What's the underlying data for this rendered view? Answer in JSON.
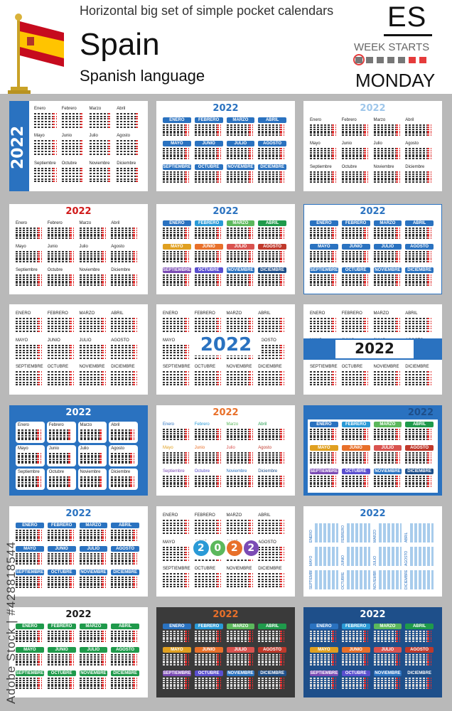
{
  "header": {
    "top_text": "Horizontal big set of simple pocket calendars",
    "country": "Spain",
    "language": "Spanish language",
    "code": "ES",
    "week_starts": "WEEK STARTS",
    "weekday": "MONDAY"
  },
  "watermark": "Adobe Stock | #428818544",
  "colors": {
    "flag_red": "#c60b1e",
    "flag_yellow": "#ffc400",
    "blue": "#2a72c0",
    "dark_blue": "#1e4f8a",
    "grey_bg": "#b9b9b9",
    "dark_card": "#3a3a3a"
  },
  "months_upper": [
    "ENERO",
    "FEBRERO",
    "MARZO",
    "ABRIL",
    "MAYO",
    "JUNIO",
    "JULIO",
    "AGOSTO",
    "SEPTIEMBRE",
    "OCTUBRE",
    "NOVIEMBRE",
    "DICIEMBRE"
  ],
  "months_title": [
    "Enero",
    "Febrero",
    "Marzo",
    "Abril",
    "Mayo",
    "Junio",
    "Julio",
    "Agosto",
    "Septiembre",
    "Octubre",
    "Noviembre",
    "Diciembre"
  ],
  "year": "2022",
  "circle_year": [
    "2",
    "0",
    "2",
    "2"
  ],
  "cards": [
    {
      "style": "title",
      "year_pos": "side-band"
    },
    {
      "style": "upper",
      "year_pos": "top",
      "year_color": "#2a72c0",
      "head": "#2a72c0"
    },
    {
      "style": "title",
      "year_pos": "top",
      "year_color": "#9ec6ea"
    },
    {
      "style": "title",
      "year_pos": "top",
      "year_color": "#d01818"
    },
    {
      "style": "upper",
      "year_pos": "top",
      "year_color": "#2a72c0",
      "head": "multi"
    },
    {
      "style": "upper",
      "year_pos": "top",
      "year_color": "#2a72c0",
      "head": "#2a72c0",
      "outline": true
    },
    {
      "style": "upper",
      "year_pos": "none",
      "head": "plain"
    },
    {
      "style": "upper",
      "year_pos": "center",
      "year_color": "#2a72c0",
      "head": "plain"
    },
    {
      "style": "upper",
      "year_pos": "band",
      "year_color": "#1a1a1a",
      "head": "plain"
    },
    {
      "style": "title",
      "year_pos": "top",
      "year_color": "#ffffff",
      "bg": "#2a72c0",
      "tiles": true
    },
    {
      "style": "title",
      "year_pos": "top",
      "year_color": "#e8702a",
      "head": "multi-text"
    },
    {
      "style": "upper",
      "year_pos": "top",
      "year_color": "#1e4f8a",
      "head": "multi",
      "bg": "#2a72c0",
      "inner": true
    },
    {
      "style": "upper",
      "year_pos": "top",
      "year_color": "#2a72c0",
      "head": "#2a72c0"
    },
    {
      "style": "upper",
      "year_pos": "circles",
      "head": "plain"
    },
    {
      "style": "upper",
      "year_pos": "top",
      "year_color": "#2a72c0",
      "head": "vertical"
    },
    {
      "style": "upper",
      "year_pos": "top",
      "year_color": "#1a1a1a",
      "head": "#1f9a4b"
    },
    {
      "style": "upper",
      "year_pos": "top",
      "year_color": "#e8702a",
      "head": "multi",
      "bg": "#3a3a3a"
    },
    {
      "style": "upper",
      "year_pos": "top",
      "year_color": "#ffffff",
      "head": "multi",
      "bg": "#1e4f8a"
    }
  ]
}
